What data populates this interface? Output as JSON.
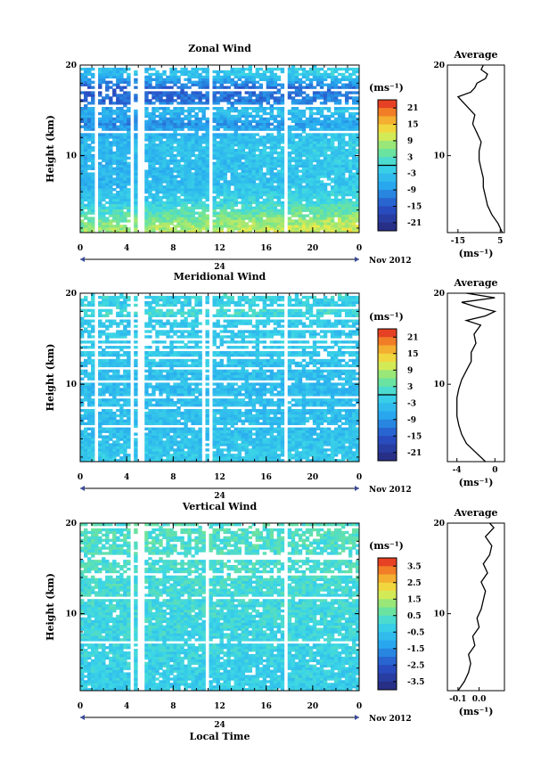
{
  "figure": {
    "x_date_label": "24",
    "x_month_label": "Nov 2012",
    "x_title": "Local Time",
    "y_title": "Height (km)",
    "units": "(ms⁻¹)",
    "avg_title": "Average",
    "avg_unit": "(ms⁻¹)"
  },
  "chart_data": [
    {
      "type": "heatmap",
      "title": "Zonal Wind",
      "xlabel": "",
      "ylabel": "Height (km)",
      "xlim": [
        0,
        24
      ],
      "ylim": [
        1.5,
        20
      ],
      "x_ticks": [
        "0",
        "4",
        "8",
        "12",
        "16",
        "20",
        "0"
      ],
      "y_ticks": [
        "20",
        "10"
      ],
      "colorbar": {
        "min": -24,
        "max": 24,
        "zero_line": 0,
        "tick_labels": [
          "21",
          "15",
          "9",
          "3",
          "-3",
          "-9",
          "-15",
          "-21"
        ],
        "tick_values": [
          21,
          15,
          9,
          3,
          -3,
          -9,
          -15,
          -21
        ]
      },
      "data_gaps_hours": [
        [
          1.2,
          1.6
        ],
        [
          4.2,
          4.6
        ],
        [
          5.0,
          5.4
        ],
        [
          11.0,
          11.4
        ],
        [
          17.6,
          17.9
        ]
      ],
      "profile_knots": [
        [
          1.5,
          10
        ],
        [
          3,
          6
        ],
        [
          5,
          -1
        ],
        [
          7,
          -4
        ],
        [
          9,
          -4
        ],
        [
          11,
          -3
        ],
        [
          12.5,
          -5
        ],
        [
          13.5,
          -9
        ],
        [
          15,
          -4
        ],
        [
          16,
          -12
        ],
        [
          17.5,
          -13
        ],
        [
          19,
          -3
        ]
      ],
      "average": {
        "xlim": [
          -20,
          7
        ],
        "x_ticks": [
          "-15",
          "5"
        ],
        "x_tick_values": [
          -15,
          5
        ],
        "y_ticks": [
          "20",
          "10"
        ],
        "profile_h": [
          1.5,
          2.5,
          3.5,
          4.5,
          5.5,
          6.5,
          7.5,
          8.5,
          9.5,
          10.5,
          11.5,
          12.5,
          13.5,
          14.5,
          15.5,
          16.5,
          17.0,
          17.5,
          18.0,
          18.5,
          19.0,
          19.5,
          20.0
        ],
        "profile_v": [
          6,
          4,
          1,
          -1,
          -2,
          -3,
          -3,
          -4,
          -5,
          -5,
          -4,
          -6,
          -8,
          -7,
          -11,
          -15,
          -9,
          -7,
          -6,
          -2,
          -1,
          -4,
          -3
        ]
      }
    },
    {
      "type": "heatmap",
      "title": "Meridional Wind",
      "xlabel": "",
      "ylabel": "Height (km)",
      "xlim": [
        0,
        24
      ],
      "ylim": [
        1.5,
        20
      ],
      "x_ticks": [
        "0",
        "4",
        "8",
        "12",
        "16",
        "20",
        "0"
      ],
      "y_ticks": [
        "20",
        "10"
      ],
      "colorbar": {
        "min": -24,
        "max": 24,
        "zero_line": 0,
        "tick_labels": [
          "21",
          "15",
          "9",
          "3",
          "-3",
          "-9",
          "-15",
          "-21"
        ],
        "tick_values": [
          21,
          15,
          9,
          3,
          -3,
          -9,
          -15,
          -21
        ]
      },
      "data_gaps_hours": [
        [
          1.2,
          1.6
        ],
        [
          4.2,
          4.6
        ],
        [
          5.0,
          5.4
        ],
        [
          10.4,
          10.8
        ],
        [
          11.0,
          11.4
        ],
        [
          17.6,
          17.9
        ]
      ],
      "profile_knots": [
        [
          1.5,
          -2
        ],
        [
          3,
          -3
        ],
        [
          5,
          -4
        ],
        [
          7,
          -4
        ],
        [
          9,
          -4.5
        ],
        [
          11,
          -4
        ],
        [
          13,
          -3
        ],
        [
          15,
          -2
        ],
        [
          16,
          -3
        ],
        [
          17,
          -2
        ],
        [
          18,
          1
        ],
        [
          19,
          -2
        ],
        [
          20,
          1
        ]
      ],
      "average": {
        "xlim": [
          -5,
          1
        ],
        "x_ticks": [
          "-4",
          "0"
        ],
        "x_tick_values": [
          -4,
          0
        ],
        "y_ticks": [
          "20",
          "10"
        ],
        "profile_h": [
          1.5,
          2.5,
          3.5,
          4.5,
          5.5,
          6.5,
          7.5,
          8.5,
          9.5,
          10.5,
          11.5,
          12.5,
          13.5,
          14.5,
          15.5,
          16.5,
          17.0,
          17.5,
          18.0,
          18.5,
          19.0,
          19.5,
          20.0
        ],
        "profile_v": [
          -1,
          -2,
          -3,
          -3.5,
          -3.8,
          -4,
          -4,
          -4,
          -3.8,
          -3.5,
          -3,
          -2.5,
          -2.5,
          -2,
          -2.2,
          -1.5,
          -3,
          -1,
          0,
          -2,
          -3.5,
          0,
          -3
        ]
      }
    },
    {
      "type": "heatmap",
      "title": "Vertical Wind",
      "xlabel": "Local Time",
      "ylabel": "Height (km)",
      "xlim": [
        0,
        24
      ],
      "ylim": [
        1.5,
        20
      ],
      "x_ticks": [
        "0",
        "4",
        "8",
        "12",
        "16",
        "20",
        "0"
      ],
      "y_ticks": [
        "20",
        "10"
      ],
      "colorbar": {
        "min": -4,
        "max": 4,
        "zero_line": null,
        "tick_labels": [
          "3.5",
          "2.5",
          "1.5",
          "0.5",
          "-0.5",
          "-1.5",
          "-2.5",
          "-3.5"
        ],
        "tick_values": [
          3.5,
          2.5,
          1.5,
          0.5,
          -0.5,
          -1.5,
          -2.5,
          -3.5
        ]
      },
      "data_gaps_hours": [
        [
          4.2,
          4.6
        ],
        [
          5.0,
          5.4
        ],
        [
          10.8,
          11.2
        ],
        [
          17.6,
          17.9
        ]
      ],
      "profile_knots": [
        [
          1.5,
          -0.3
        ],
        [
          20,
          0.4
        ]
      ],
      "average": {
        "xlim": [
          -0.15,
          0.12
        ],
        "x_ticks": [
          "-0.1",
          "0.0"
        ],
        "x_tick_values": [
          -0.1,
          0.0
        ],
        "y_ticks": [
          "20",
          "10"
        ],
        "profile_h": [
          1.5,
          2.5,
          3.5,
          4.5,
          5.5,
          6.5,
          7.5,
          8.5,
          9.5,
          10.5,
          11.5,
          12.5,
          13.5,
          14.5,
          15.5,
          16.5,
          17.5,
          18.5,
          19.5,
          20.0
        ],
        "profile_v": [
          -0.1,
          -0.07,
          -0.05,
          -0.04,
          -0.05,
          -0.02,
          -0.03,
          0.0,
          -0.01,
          0.01,
          0.02,
          0.03,
          0.01,
          0.04,
          0.02,
          0.05,
          0.06,
          0.03,
          0.07,
          0.05
        ]
      }
    }
  ]
}
